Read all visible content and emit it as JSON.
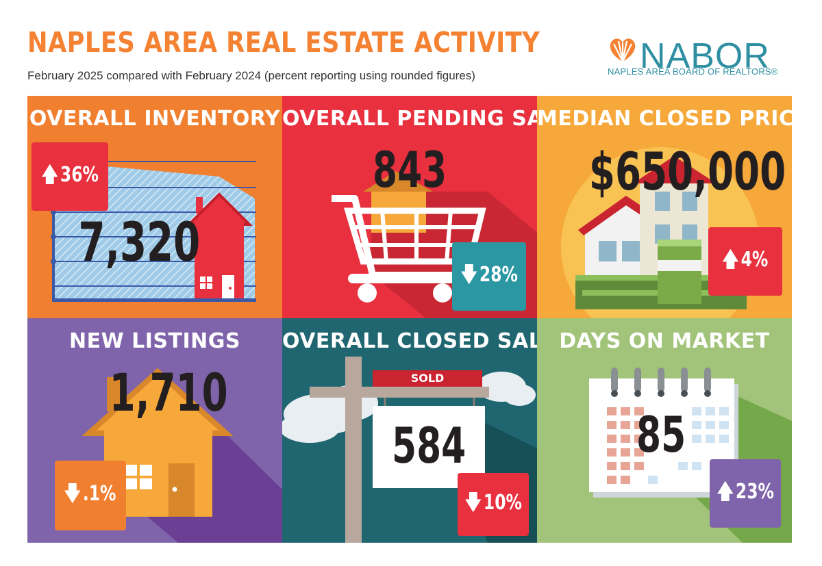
{
  "header": {
    "title": "NAPLES AREA REAL ESTATE ACTIVITY",
    "subtitle": "February 2025 compared with February 2024 (percent reporting using rounded figures)"
  },
  "logo": {
    "wordmark": "NABOR",
    "tagline": "NAPLES AREA BOARD OF REALTORS®",
    "icon": "shell-icon"
  },
  "tiles": {
    "inventory": {
      "heading": "OVERALL INVENTORY",
      "value": "7,320",
      "change": "36%",
      "direction": "up"
    },
    "pending": {
      "heading": "OVERALL PENDING SALES",
      "value": "843",
      "change": "28%",
      "direction": "down"
    },
    "median": {
      "heading": "MEDIAN CLOSED PRICE",
      "value": "$650,000",
      "change": "4%",
      "direction": "up"
    },
    "listings": {
      "heading": "NEW LISTINGS",
      "value": "1,710",
      "change": ".1%",
      "direction": "down"
    },
    "closed": {
      "heading": "OVERALL CLOSED SALES",
      "value": "584",
      "change": "10%",
      "direction": "down",
      "sign": "SOLD"
    },
    "dom": {
      "heading": "DAYS ON MARKET",
      "value": "85",
      "change": "23%",
      "direction": "up"
    }
  },
  "colors": {
    "title_orange": "#f58232",
    "logo_teal": "#2e8fa3",
    "tile_inventory": "#f07f30",
    "tile_pending": "#e8303e",
    "tile_median": "#f6a83a",
    "tile_listings": "#8064ab",
    "tile_closed": "#1f6670",
    "tile_dom": "#a2c47a",
    "badge_red": "#e8303e",
    "badge_teal": "#2b97a3",
    "badge_purple": "#8064ab"
  }
}
